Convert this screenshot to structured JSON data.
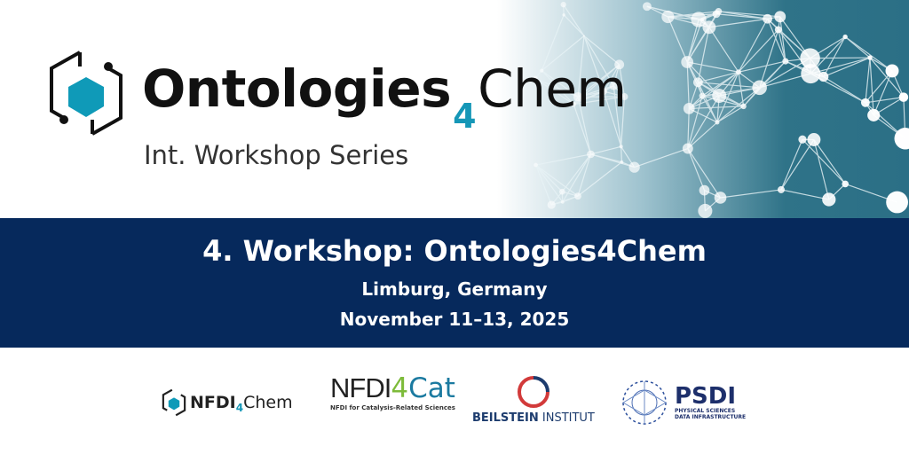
{
  "header": {
    "title_main": "Ontologies",
    "title_sub": "4",
    "title_end": "Chem",
    "series": "Int. Workshop Series"
  },
  "event": {
    "title": "4. Workshop: Ontologies4Chem",
    "location": "Limburg, Germany",
    "dates": "November 11–13, 2025"
  },
  "partners": [
    {
      "name": "NFDI",
      "sub": "4",
      "end": "Chem"
    },
    {
      "name": "NFDI",
      "sub": "4",
      "end": "Cat",
      "tagline": "NFDI for Catalysis-Related Sciences"
    },
    {
      "name": "BEILSTEIN",
      "end": "INSTITUT"
    },
    {
      "name": "PSDI",
      "line1": "PHYSICAL SCIENCES",
      "line2": "DATA INFRASTRUCTURE"
    }
  ],
  "colors": {
    "navy": "#06295c",
    "teal": "#1597b7",
    "network": "#2b6f86"
  }
}
